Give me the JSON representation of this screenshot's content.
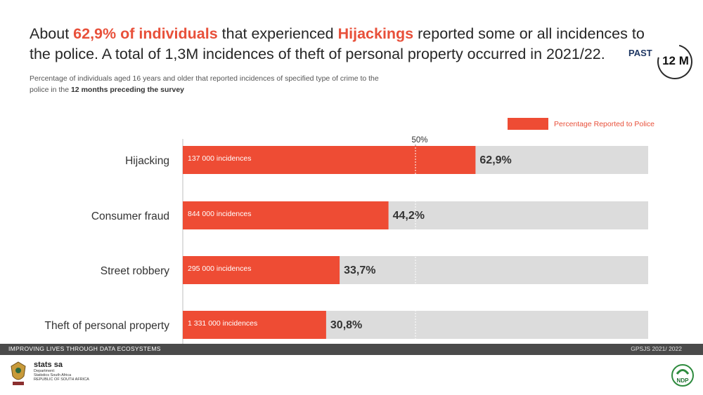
{
  "headline": {
    "part1": "About ",
    "highlight1": "62,9% of individuals",
    "part2": " that experienced ",
    "highlight2": "Hijackings",
    "part3": " reported some or all incidences to the police. A total of 1,3M incidences of theft of personal property occurred in 2021/22."
  },
  "badge": {
    "past": "PAST",
    "period": "12 M"
  },
  "subtitle": {
    "text": "Percentage of individuals aged 16 years and older that reported incidences of specified type of crime to the police in the ",
    "bold": "12 months preceding the survey"
  },
  "chart_data": {
    "type": "bar",
    "orientation": "horizontal",
    "categories": [
      "Hijacking",
      "Consumer fraud",
      "Street robbery",
      "Theft of personal property"
    ],
    "values": [
      62.9,
      44.2,
      33.7,
      30.8
    ],
    "value_labels": [
      "62,9%",
      "44,2%",
      "33,7%",
      "30,8%"
    ],
    "bar_labels": [
      "137 000  incidences",
      "844 000  incidences",
      "295 000  incidences",
      "1 331 000  incidences"
    ],
    "series_name": "Percentage Reported to Police",
    "xlim": [
      0,
      100
    ],
    "reference_line": {
      "value": 50,
      "label": "50%"
    },
    "colors": {
      "bar": "#ee4c34",
      "track": "#dcdcdc",
      "accent": "#e8503a"
    }
  },
  "footer": {
    "tagline": "IMPROVING LIVES THROUGH DATA ECOSYSTEMS",
    "survey": "GPSJS 2021/ 2022"
  },
  "logo": {
    "name": "stats sa",
    "line1": "Department:",
    "line2": "Statistics South Africa",
    "line3": "REPUBLIC OF SOUTH AFRICA",
    "ndp": "NDP"
  }
}
